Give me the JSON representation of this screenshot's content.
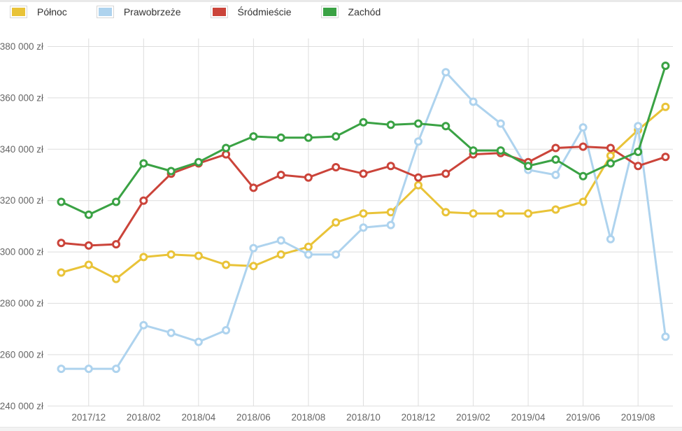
{
  "chart_data": {
    "type": "line",
    "categories": [
      "2017/11",
      "2017/12",
      "2018/01",
      "2018/02",
      "2018/03",
      "2018/04",
      "2018/05",
      "2018/06",
      "2018/07",
      "2018/08",
      "2018/09",
      "2018/10",
      "2018/11",
      "2018/12",
      "2019/01",
      "2019/02",
      "2019/03",
      "2019/04",
      "2019/05",
      "2019/06",
      "2019/07",
      "2019/08",
      "2019/09"
    ],
    "x_tick_labels": [
      "2017/12",
      "2018/02",
      "2018/04",
      "2018/06",
      "2018/08",
      "2018/10",
      "2018/12",
      "2019/02",
      "2019/04",
      "2019/06",
      "2019/08"
    ],
    "y_tick_labels": [
      "380 000 zł",
      "360 000 zł",
      "340 000 zł",
      "320 000 zł",
      "300 000 zł",
      "280 000 zł",
      "260 000 zł",
      "240 000 zł"
    ],
    "ylim": [
      240000,
      380000
    ],
    "y_tick_step": 20000,
    "grid": true,
    "legend_position": "top-left",
    "currency_suffix": "zł",
    "series": [
      {
        "id": "polnoc",
        "name": "Północ",
        "color": "#e9c338",
        "values": [
          292000,
          295000,
          289500,
          298000,
          299000,
          298500,
          295000,
          294500,
          299000,
          302000,
          311500,
          315000,
          315500,
          326000,
          315500,
          315000,
          315000,
          315000,
          316500,
          319500,
          337500,
          347500,
          356500
        ]
      },
      {
        "id": "prawobrzeze",
        "name": "Prawobrzeże",
        "color": "#aed3ee",
        "values": [
          254500,
          254500,
          254500,
          271500,
          268500,
          265000,
          269500,
          301500,
          304500,
          299000,
          299000,
          309500,
          310500,
          343000,
          370000,
          358500,
          350000,
          332000,
          330000,
          348500,
          305000,
          349000,
          267000
        ]
      },
      {
        "id": "srodmiescie",
        "name": "Śródmieście",
        "color": "#cb443a",
        "values": [
          303500,
          302500,
          303000,
          320000,
          330500,
          334500,
          338000,
          325000,
          330000,
          329000,
          333000,
          330500,
          333500,
          329000,
          330500,
          338000,
          338500,
          335000,
          340500,
          341000,
          340500,
          333500,
          337000
        ]
      },
      {
        "id": "zachod",
        "name": "Zachód",
        "color": "#3aa244",
        "values": [
          319500,
          314500,
          319500,
          334500,
          331500,
          335000,
          340500,
          345000,
          344500,
          344500,
          345000,
          350500,
          349500,
          350000,
          349000,
          339500,
          339500,
          333500,
          336000,
          329500,
          334500,
          339000,
          372500
        ]
      }
    ]
  }
}
